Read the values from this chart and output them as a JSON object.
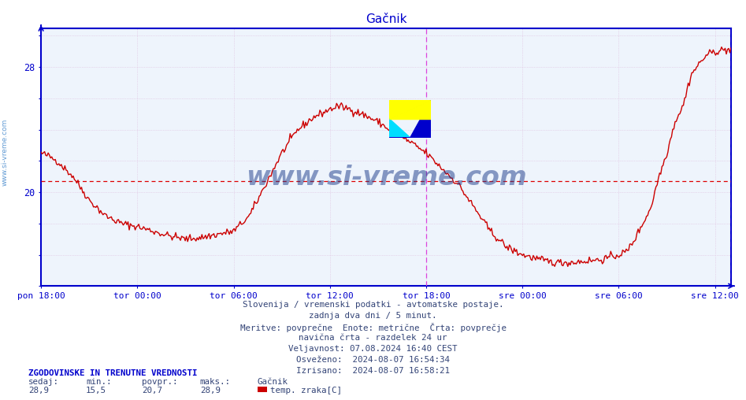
{
  "title": "Gačnik",
  "title_color": "#0000cc",
  "bg_color": "#ffffff",
  "plot_bg_color": "#eef4fc",
  "line_color": "#cc0000",
  "line_width": 1.0,
  "avg_line_value": 20.7,
  "avg_line_color": "#dd0000",
  "y_min": 14.0,
  "y_max": 30.5,
  "axis_color": "#0000cc",
  "grid_color": "#ddbbdd",
  "x_tick_labels": [
    "pon 18:00",
    "tor 00:00",
    "tor 06:00",
    "tor 12:00",
    "tor 18:00",
    "sre 00:00",
    "sre 06:00",
    "sre 12:00"
  ],
  "x_tick_positions": [
    0,
    6,
    12,
    18,
    24,
    30,
    36,
    42
  ],
  "vertical_lines": [
    24,
    43
  ],
  "vertical_line_color": "#dd44dd",
  "watermark_text": "www.si-vreme.com",
  "watermark_color": "#1a3a8a",
  "watermark_alpha": 0.5,
  "sidebar_text": "www.si-vreme.com",
  "sidebar_color": "#4488cc",
  "info_lines": [
    "Slovenija / vremenski podatki - avtomatske postaje.",
    "zadnja dva dni / 5 minut.",
    "Meritve: povprečne  Enote: metrične  Črta: povprečje",
    "navična črta - razdelek 24 ur",
    "Veljavnost: 07.08.2024 16:40 CEST",
    "Osveženo:  2024-08-07 16:54:34",
    "Izrisano:  2024-08-07 16:58:21"
  ],
  "legend_header": "ZGODOVINSKE IN TRENUTNE VREDNOSTI",
  "legend_col_headers": [
    "sedaj:",
    "min.:",
    "povpr.:",
    "maks.:",
    "Gačnik"
  ],
  "legend_col_values": [
    "28,9",
    "15,5",
    "20,7",
    "28,9"
  ],
  "legend_series": "temp. zraka[C]",
  "legend_series_color": "#cc0000",
  "key_t": [
    0,
    0.5,
    1,
    2,
    3,
    4,
    5,
    6,
    7,
    8,
    9,
    10,
    11,
    12,
    13,
    14,
    15,
    16,
    17,
    18,
    18.5,
    19,
    19.5,
    20,
    21,
    22,
    23,
    24,
    25,
    26,
    27,
    28,
    29,
    30,
    31,
    32,
    33,
    34,
    35,
    36,
    36.5,
    37,
    37.5,
    38,
    38.5,
    39,
    39.5,
    40,
    40.5,
    41,
    41.5,
    42,
    42.5,
    43
  ],
  "key_v": [
    22.5,
    22.3,
    22.0,
    21.0,
    19.5,
    18.5,
    18.0,
    17.8,
    17.5,
    17.2,
    17.0,
    17.1,
    17.3,
    17.5,
    18.5,
    20.5,
    22.5,
    24.0,
    24.8,
    25.3,
    25.5,
    25.4,
    25.2,
    25.0,
    24.5,
    23.8,
    23.2,
    22.5,
    21.5,
    20.5,
    19.0,
    17.5,
    16.5,
    16.0,
    15.7,
    15.5,
    15.5,
    15.6,
    15.7,
    16.0,
    16.2,
    17.0,
    18.0,
    19.0,
    21.0,
    22.5,
    24.5,
    25.5,
    27.5,
    28.2,
    28.8,
    29.0,
    29.1,
    29.1
  ]
}
